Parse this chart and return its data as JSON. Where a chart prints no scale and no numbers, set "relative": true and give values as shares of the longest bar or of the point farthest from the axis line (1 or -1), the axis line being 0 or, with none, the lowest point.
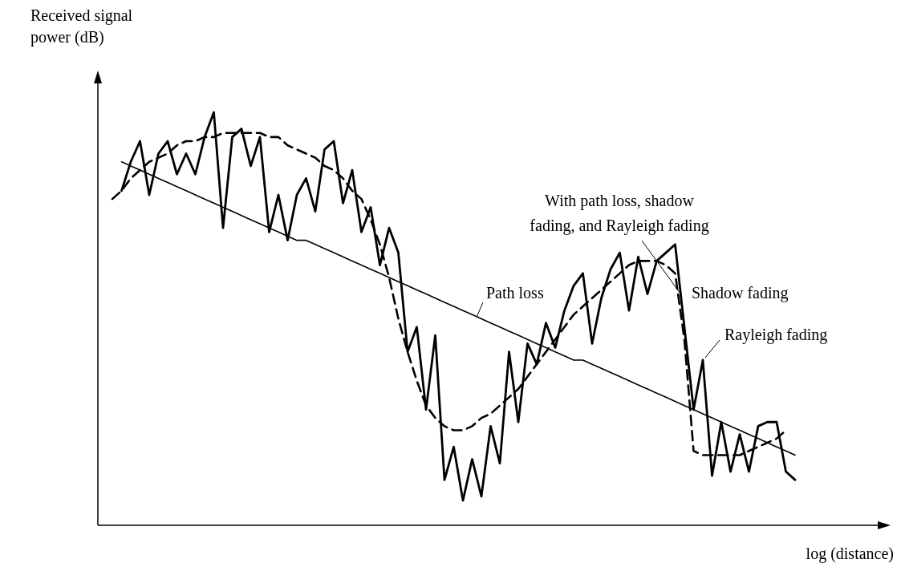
{
  "chart_data": {
    "type": "line",
    "relative": true,
    "xlabel": "log (distance)",
    "ylabel": "Received signal power (dB)",
    "categories": [
      null,
      null,
      null,
      null,
      null,
      null,
      null,
      null,
      null,
      null,
      null,
      null,
      null,
      null,
      null,
      null,
      null,
      null,
      null,
      null,
      null,
      null,
      null,
      null,
      null,
      null,
      null,
      null,
      null,
      null,
      null,
      null,
      null,
      null,
      null,
      null,
      null,
      null,
      null,
      null,
      null,
      null,
      null,
      null,
      null,
      null,
      null,
      null,
      null,
      null,
      null,
      null,
      null,
      null,
      null,
      null,
      null,
      null,
      null,
      null,
      null,
      null,
      null,
      null,
      null,
      null,
      null,
      null,
      null,
      null,
      null,
      null,
      null,
      null,
      null
    ],
    "annotations": [
      "Rayleigh fading"
    ],
    "series": [
      {
        "name": "Path loss",
        "color": "#000000",
        "line_style": "solid",
        "values": [
          null,
          0.88,
          0.87,
          0.86,
          0.85,
          0.84,
          0.83,
          0.82,
          0.81,
          0.8,
          0.79,
          0.78,
          0.77,
          0.76,
          0.75,
          0.74,
          0.73,
          0.72,
          0.71,
          0.7,
          0.69,
          0.69,
          0.68,
          0.67,
          0.66,
          0.65,
          0.64,
          0.63,
          0.62,
          0.61,
          0.6,
          0.59,
          0.58,
          0.57,
          0.56,
          0.55,
          0.54,
          0.53,
          0.52,
          0.51,
          0.5,
          0.49,
          0.48,
          0.47,
          0.46,
          0.45,
          0.44,
          0.43,
          0.42,
          0.41,
          0.4,
          0.4,
          0.39,
          0.38,
          0.37,
          0.36,
          0.35,
          0.34,
          0.33,
          0.32,
          0.31,
          0.3,
          0.29,
          0.28,
          0.27,
          0.26,
          0.25,
          0.24,
          0.23,
          0.22,
          0.21,
          0.2,
          0.19,
          0.18,
          0.17
        ]
      },
      {
        "name": "Shadow fading",
        "color": "#000000",
        "line_style": "dashed",
        "values": [
          0.79,
          0.81,
          0.84,
          0.86,
          0.88,
          0.89,
          0.9,
          0.92,
          0.93,
          0.93,
          0.94,
          0.94,
          0.95,
          0.95,
          0.95,
          0.95,
          0.95,
          0.94,
          0.94,
          0.92,
          0.91,
          0.9,
          0.89,
          0.87,
          0.86,
          0.84,
          0.81,
          0.79,
          0.74,
          0.68,
          0.6,
          0.5,
          0.42,
          0.35,
          0.29,
          0.26,
          0.24,
          0.23,
          0.23,
          0.24,
          0.26,
          0.27,
          0.29,
          0.31,
          0.33,
          0.36,
          0.39,
          0.42,
          0.45,
          0.48,
          0.51,
          0.53,
          0.55,
          0.57,
          0.59,
          0.61,
          0.63,
          0.64,
          0.64,
          0.64,
          0.63,
          0.61,
          0.45,
          0.18,
          0.17,
          0.17,
          0.17,
          0.17,
          0.17,
          0.18,
          0.19,
          0.2,
          0.21,
          0.23,
          null
        ]
      },
      {
        "name": "With path loss, shadow fading, and Rayleigh fading",
        "color": "#000000",
        "line_style": "solid",
        "values": [
          null,
          0.81,
          0.88,
          0.93,
          0.8,
          0.9,
          0.93,
          0.85,
          0.9,
          0.85,
          0.94,
          1.0,
          0.72,
          0.94,
          0.96,
          0.87,
          0.94,
          0.71,
          0.8,
          0.69,
          0.8,
          0.84,
          0.76,
          0.91,
          0.93,
          0.78,
          0.86,
          0.71,
          0.77,
          0.63,
          0.72,
          0.66,
          0.42,
          0.48,
          0.28,
          0.46,
          0.11,
          0.19,
          0.06,
          0.16,
          0.07,
          0.24,
          0.15,
          0.42,
          0.25,
          0.44,
          0.39,
          0.49,
          0.43,
          0.52,
          0.58,
          0.61,
          0.44,
          0.55,
          0.62,
          0.66,
          0.52,
          0.65,
          0.56,
          0.64,
          0.66,
          0.68,
          0.48,
          0.28,
          0.4,
          0.12,
          0.25,
          0.13,
          0.22,
          0.13,
          0.24,
          0.25,
          0.25,
          0.13,
          0.11
        ]
      }
    ]
  }
}
